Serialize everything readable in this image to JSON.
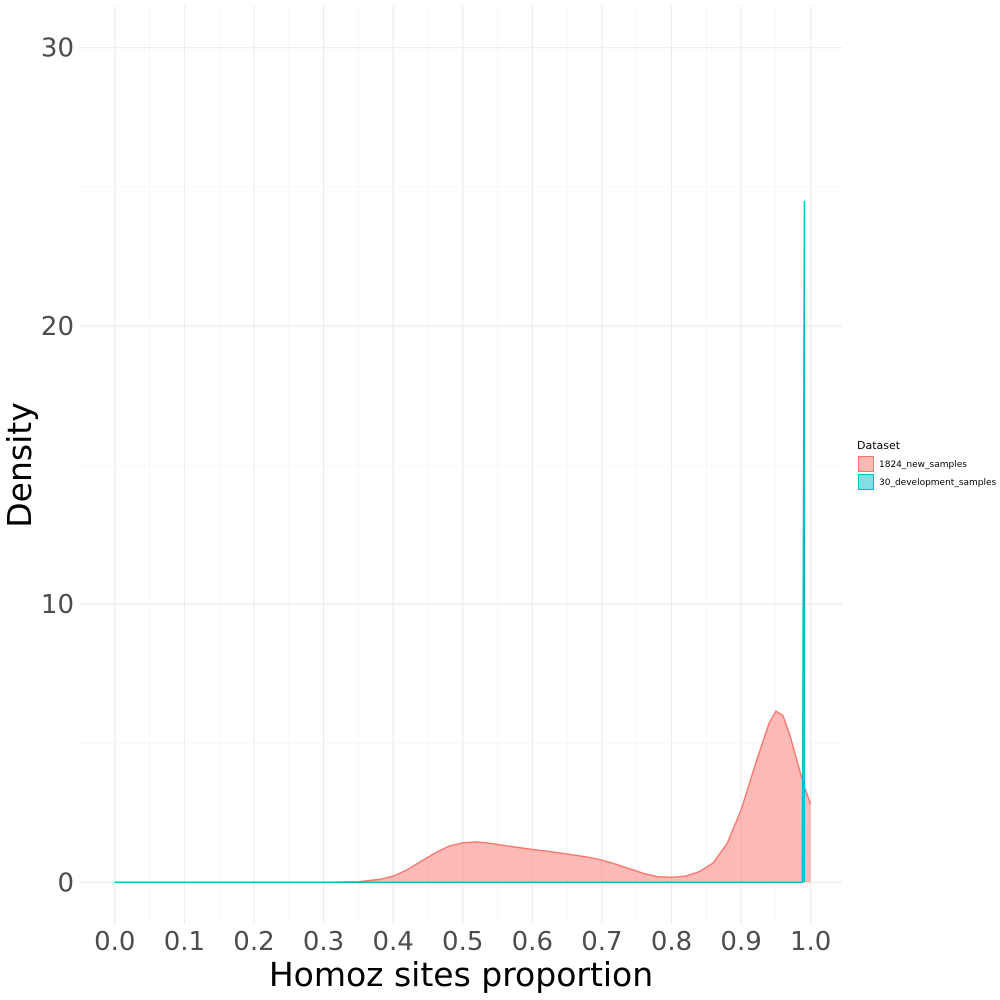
{
  "chart_data": {
    "type": "area",
    "xlabel": "Homoz sites proportion",
    "ylabel": "Density",
    "xlim": [
      -0.05,
      1.045
    ],
    "ylim": [
      -1.5,
      31.5
    ],
    "x_ticks": [
      0.0,
      0.1,
      0.2,
      0.3,
      0.4,
      0.5,
      0.6,
      0.7,
      0.8,
      0.9,
      1.0
    ],
    "x_tick_labels": [
      "0.0",
      "0.1",
      "0.2",
      "0.3",
      "0.4",
      "0.5",
      "0.6",
      "0.7",
      "0.8",
      "0.9",
      "1.0"
    ],
    "y_ticks": [
      0,
      10,
      20,
      30
    ],
    "y_tick_labels": [
      "0",
      "10",
      "20",
      "30"
    ],
    "grid": true,
    "legend": {
      "title": "Dataset",
      "position": "right"
    },
    "series": [
      {
        "name": "1824_new_samples",
        "line_color": "#F8766D",
        "fill_color": "#F8766D",
        "fill_opacity": 0.5,
        "x": [
          0.0,
          0.3,
          0.35,
          0.38,
          0.4,
          0.42,
          0.44,
          0.46,
          0.48,
          0.5,
          0.52,
          0.54,
          0.56,
          0.58,
          0.6,
          0.62,
          0.65,
          0.68,
          0.7,
          0.72,
          0.74,
          0.76,
          0.78,
          0.8,
          0.82,
          0.84,
          0.86,
          0.88,
          0.9,
          0.92,
          0.94,
          0.95,
          0.96,
          0.97,
          0.98,
          0.99,
          1.0
        ],
        "y": [
          0.0,
          0.0,
          0.02,
          0.1,
          0.22,
          0.45,
          0.75,
          1.05,
          1.3,
          1.42,
          1.45,
          1.4,
          1.32,
          1.25,
          1.18,
          1.12,
          1.02,
          0.9,
          0.8,
          0.65,
          0.48,
          0.32,
          0.2,
          0.18,
          0.22,
          0.38,
          0.7,
          1.4,
          2.6,
          4.2,
          5.7,
          6.15,
          6.0,
          5.3,
          4.4,
          3.5,
          2.8
        ]
      },
      {
        "name": "30_development_samples",
        "line_color": "#00BFC4",
        "fill_color": "#00BFC4",
        "fill_opacity": 0.5,
        "x": [
          0.0,
          0.988,
          0.988,
          0.991,
          0.991
        ],
        "y": [
          0.0,
          0.0,
          0.0,
          24.5,
          0.0
        ]
      }
    ]
  }
}
